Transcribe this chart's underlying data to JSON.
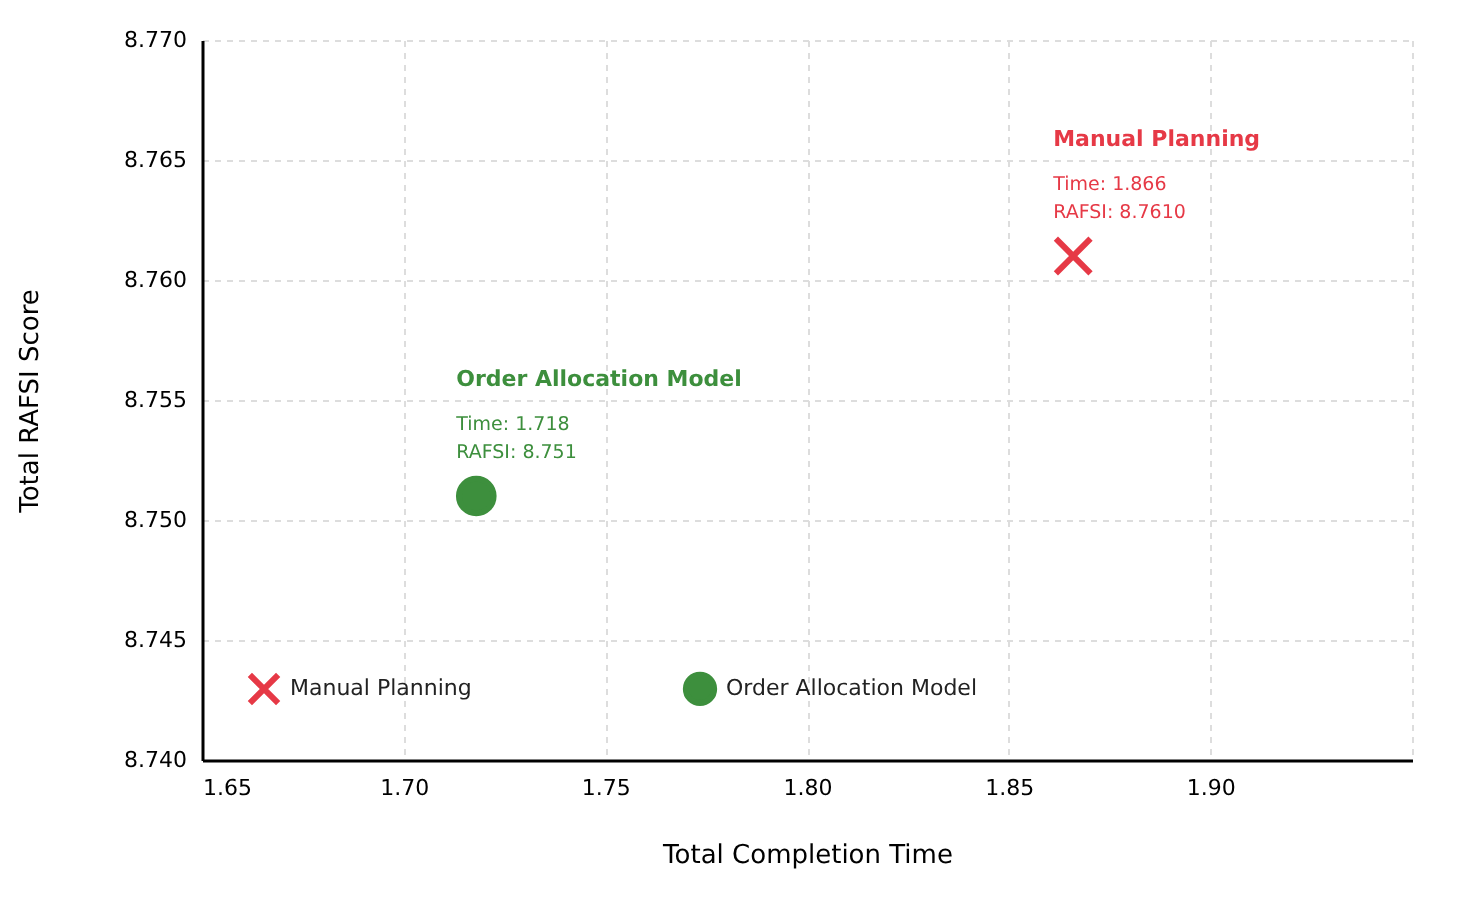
{
  "chart_data": {
    "type": "scatter",
    "xlabel": "Total Completion Time",
    "ylabel": "Total RAFSI Score",
    "series": [
      {
        "name": "Manual Planning",
        "color": "#e63946",
        "marker": "cross",
        "x": [
          1.866
        ],
        "values": [
          8.761
        ]
      },
      {
        "name": "Order Allocation Model",
        "color": "#3d8f3d",
        "marker": "circle",
        "x": [
          1.718
        ],
        "values": [
          8.751
        ]
      }
    ],
    "xlim": [
      1.65,
      1.95
    ],
    "xticks": [
      1.65,
      {
        "value": 1.7,
        "label": "1.70"
      },
      1.75,
      {
        "value": 1.8,
        "label": "1.80"
      },
      1.85,
      {
        "value": 1.9,
        "label": "1.90"
      },
      {
        "value": 1.95,
        "label": null
      }
    ],
    "ylim": [
      8.74,
      8.77
    ],
    "yticks": [
      {
        "value": 8.74,
        "label": "8.740"
      },
      8.745,
      {
        "value": 8.75,
        "label": "8.750"
      },
      8.755,
      {
        "value": 8.76,
        "label": "8.760"
      },
      8.765,
      {
        "value": 8.77,
        "label": "8.770"
      }
    ],
    "annotations": [
      "Manual Planning",
      "Time: 1.866",
      "RAFSI: 8.7610",
      "Order Allocation Model",
      "Time: 1.718",
      "RAFSI: 8.751"
    ],
    "grid": true,
    "legend": "bottom left"
  }
}
